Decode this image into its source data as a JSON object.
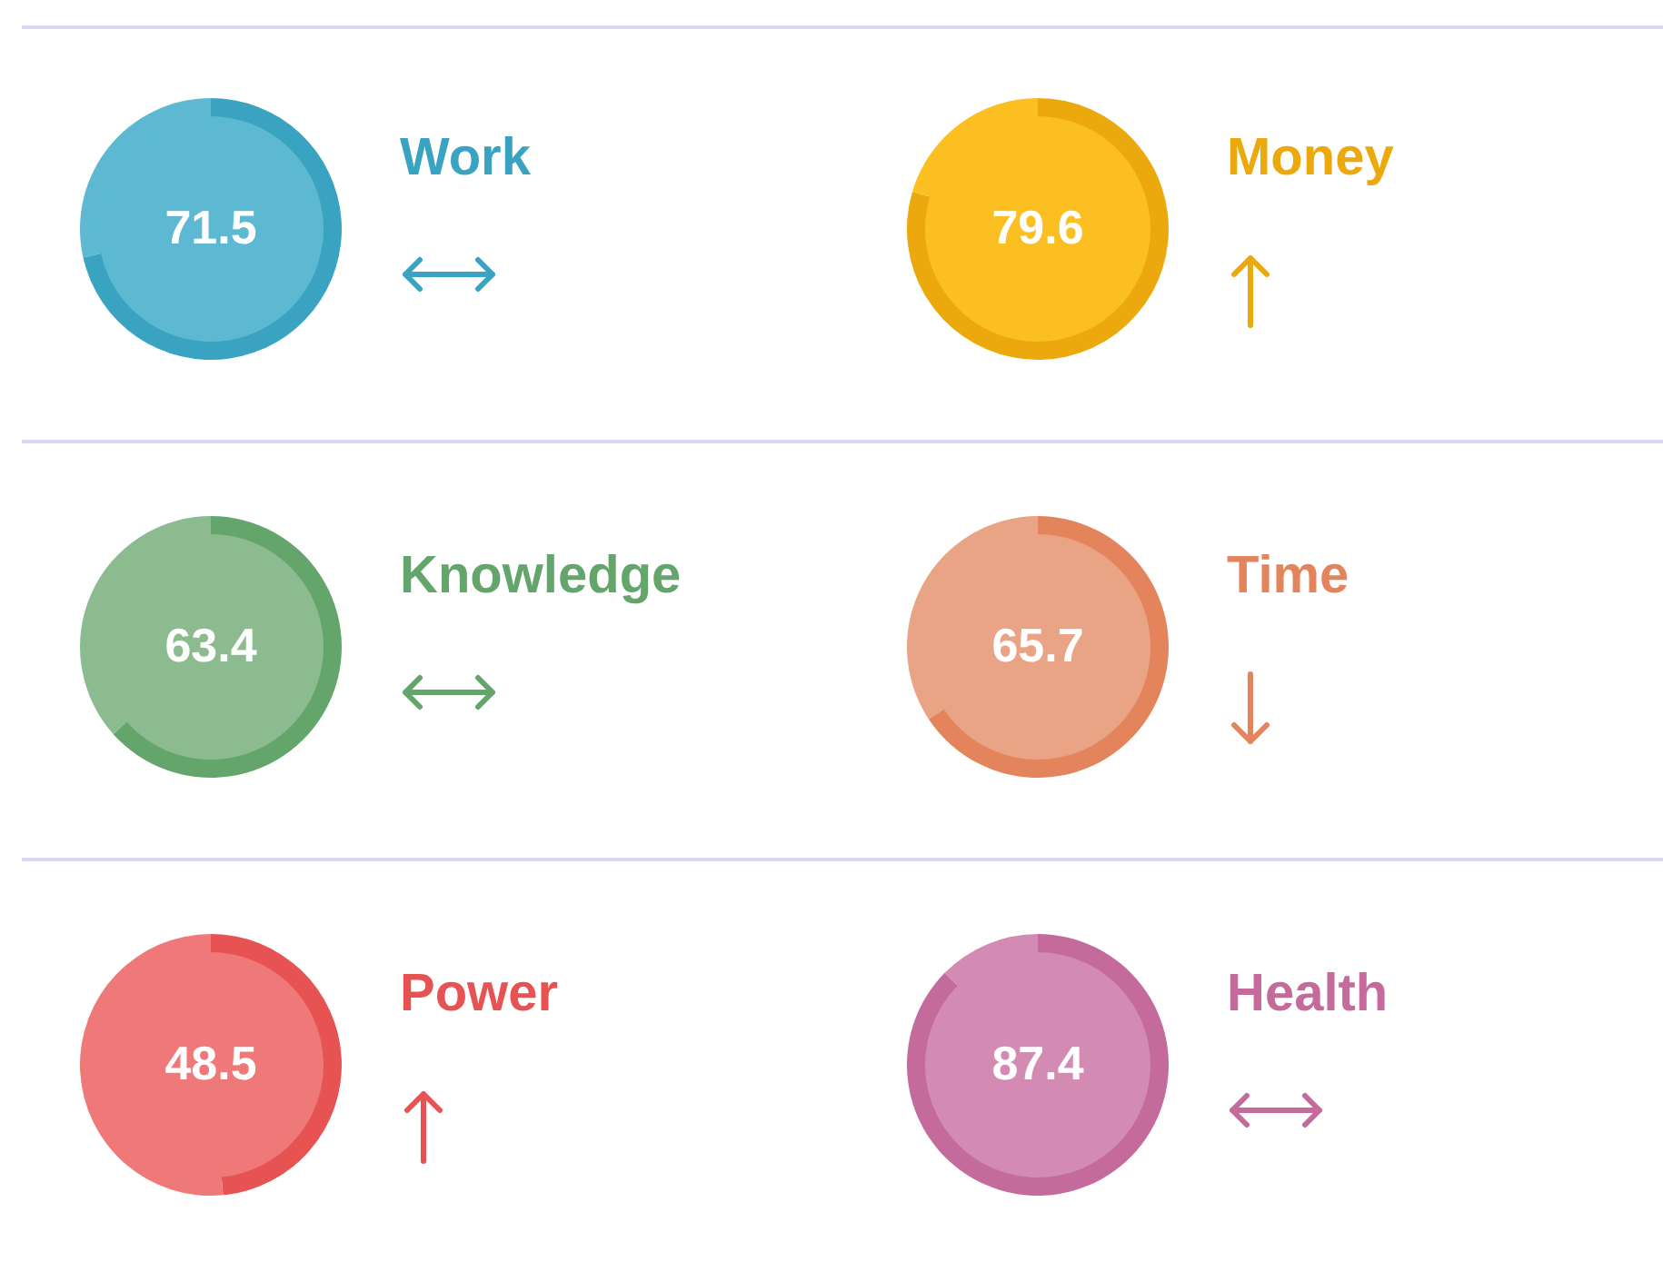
{
  "chart_data": [
    {
      "type": "donut",
      "title": "Work",
      "categories": [
        null,
        null
      ],
      "values": [
        71.5,
        28.5
      ],
      "colors": [
        "#3aa3c1",
        "#5cb9d1"
      ],
      "value_labels": [
        "71.5",
        null
      ]
    },
    {
      "type": "donut",
      "title": "Money",
      "categories": [
        null,
        null
      ],
      "values": [
        79.6,
        20.4
      ],
      "colors": [
        "#eba90d",
        "#fbbf22"
      ],
      "value_labels": [
        "79.6",
        null
      ]
    },
    {
      "type": "donut",
      "title": "Knowledge",
      "categories": [
        null,
        null
      ],
      "values": [
        63.4,
        36.6
      ],
      "colors": [
        "#63a56b",
        "#8cbb8f"
      ],
      "value_labels": [
        "63.4",
        null
      ]
    },
    {
      "type": "donut",
      "title": "Time",
      "categories": [
        null,
        null
      ],
      "values": [
        65.7,
        34.3
      ],
      "colors": [
        "#e4845c",
        "#e9a385"
      ],
      "value_labels": [
        "65.7",
        null
      ]
    },
    {
      "type": "donut",
      "title": "Power",
      "categories": [
        null,
        null
      ],
      "values": [
        48.5,
        51.5
      ],
      "colors": [
        "#e65352",
        "#ef7878"
      ],
      "value_labels": [
        "48.5",
        null
      ]
    },
    {
      "type": "donut",
      "title": "Health",
      "categories": [
        null,
        null
      ],
      "values": [
        87.4,
        12.6
      ],
      "colors": [
        "#c46b9c",
        "#d48bb3"
      ],
      "value_labels": [
        "87.4",
        null
      ]
    }
  ]
}
